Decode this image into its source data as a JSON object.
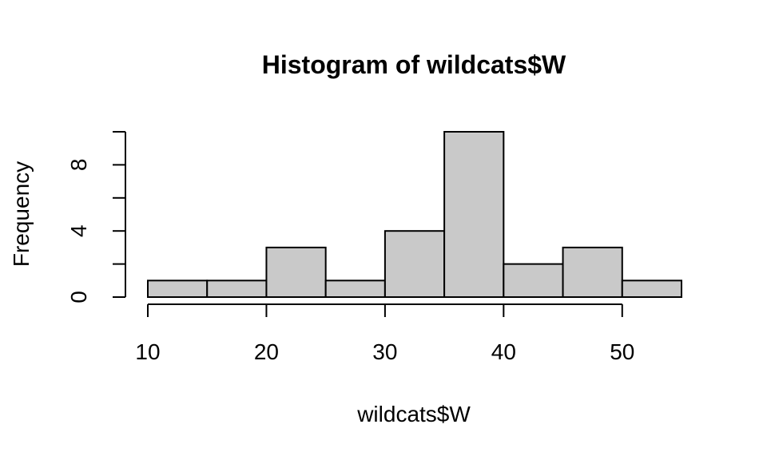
{
  "chart_data": {
    "type": "bar",
    "title": "Histogram of wildcats$W",
    "xlabel": "wildcats$W",
    "ylabel": "Frequency",
    "bins": [
      {
        "from": 10,
        "to": 15,
        "count": 1
      },
      {
        "from": 15,
        "to": 20,
        "count": 1
      },
      {
        "from": 20,
        "to": 25,
        "count": 3
      },
      {
        "from": 25,
        "to": 30,
        "count": 1
      },
      {
        "from": 30,
        "to": 35,
        "count": 4
      },
      {
        "from": 35,
        "to": 40,
        "count": 10
      },
      {
        "from": 40,
        "to": 45,
        "count": 2
      },
      {
        "from": 45,
        "to": 50,
        "count": 3
      },
      {
        "from": 50,
        "to": 55,
        "count": 1
      }
    ],
    "xlim": [
      10,
      55
    ],
    "ylim": [
      0,
      10
    ],
    "x_ticks": [
      10,
      20,
      30,
      40,
      50
    ],
    "y_ticks": [
      0,
      2,
      4,
      6,
      8,
      10
    ],
    "y_tick_labels": [
      "0",
      "",
      "4",
      "",
      "8",
      ""
    ],
    "grid": false,
    "bar_color": "#c9c9c9",
    "edge_color": "#000000"
  }
}
